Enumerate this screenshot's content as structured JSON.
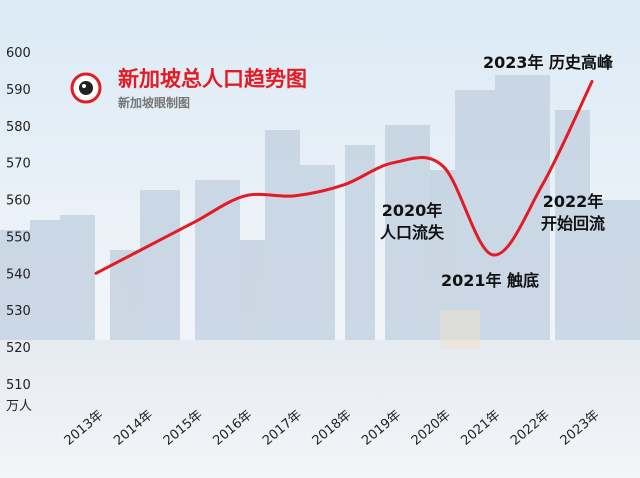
{
  "brand": {
    "logo_text": "新加坡眼",
    "accent_color": "#e31b23"
  },
  "chart_data": {
    "type": "line",
    "title": "新加坡总人口趋势图",
    "subtitle": "新加坡眼制图",
    "ylabel_unit": "万人",
    "ylim": [
      510,
      600
    ],
    "yticks": [
      510,
      520,
      530,
      540,
      550,
      560,
      570,
      580,
      590,
      600
    ],
    "categories": [
      "2013年",
      "2014年",
      "2015年",
      "2016年",
      "2017年",
      "2018年",
      "2019年",
      "2020年",
      "2021年",
      "2022年",
      "2023年"
    ],
    "series": [
      {
        "color": "#e31b23",
        "values": [
          540,
          547,
          554,
          561,
          561,
          564,
          570,
          569,
          545,
          564,
          592
        ]
      }
    ],
    "annotations": [
      {
        "point": 7,
        "lines": [
          "2020年",
          "人口流失"
        ]
      },
      {
        "point": 8,
        "lines": [
          "2021年 触底"
        ]
      },
      {
        "point": 9,
        "lines": [
          "2022年",
          "开始回流"
        ]
      },
      {
        "point": 10,
        "lines": [
          "2023年 历史高峰"
        ]
      }
    ],
    "grid": false,
    "legend": "none"
  }
}
